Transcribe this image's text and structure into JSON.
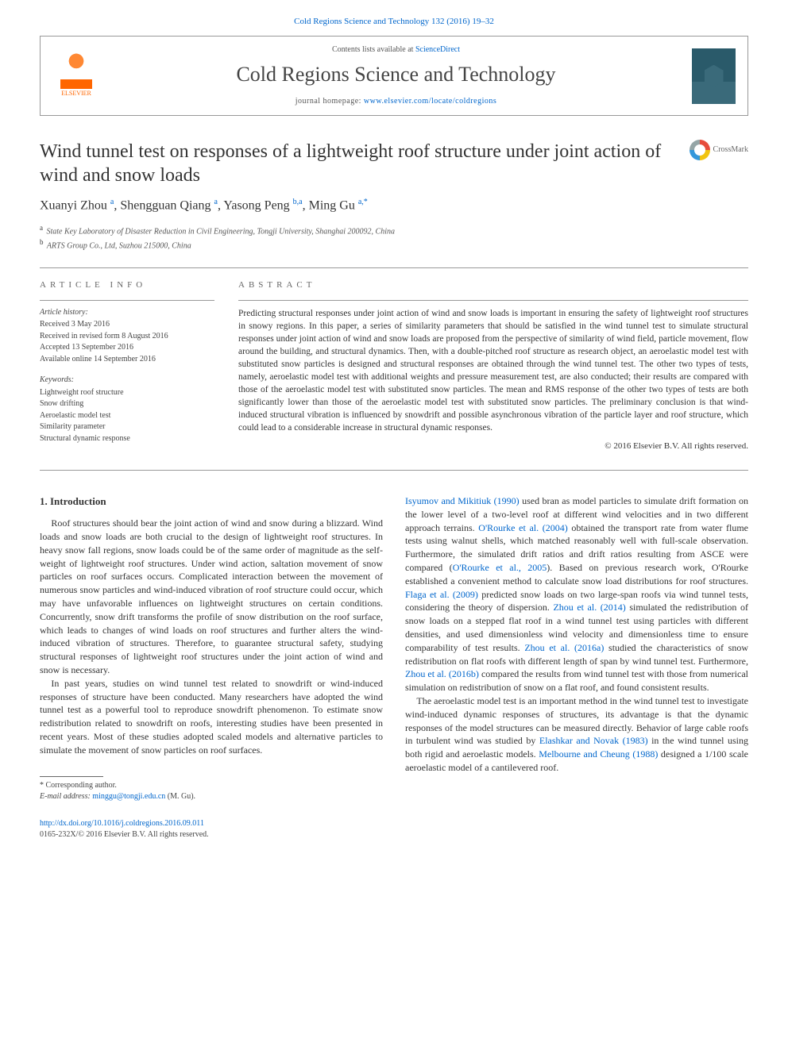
{
  "header": {
    "top_link": "Cold Regions Science and Technology 132 (2016) 19–32",
    "contents_prefix": "Contents lists available at ",
    "contents_link": "ScienceDirect",
    "journal_title": "Cold Regions Science and Technology",
    "homepage_label": "journal homepage: ",
    "homepage_url": "www.elsevier.com/locate/coldregions",
    "elsevier_label": "ELSEVIER"
  },
  "article": {
    "title": "Wind tunnel test on responses of a lightweight roof structure under joint action of wind and snow loads",
    "crossmark": "CrossMark",
    "authors_html": "Xuanyi Zhou <sup>a</sup>, Shengguan Qiang <sup>a</sup>, Yasong Peng <sup>b,a</sup>, Ming Gu <sup>a,*</sup>",
    "affiliations": [
      {
        "sup": "a",
        "text": "State Key Laboratory of Disaster Reduction in Civil Engineering, Tongji University, Shanghai 200092, China"
      },
      {
        "sup": "b",
        "text": "ARTS Group Co., Ltd, Suzhou 215000, China"
      }
    ]
  },
  "info": {
    "heading": "ARTICLE INFO",
    "history_label": "Article history:",
    "history": [
      "Received 3 May 2016",
      "Received in revised form 8 August 2016",
      "Accepted 13 September 2016",
      "Available online 14 September 2016"
    ],
    "keywords_label": "Keywords:",
    "keywords": [
      "Lightweight roof structure",
      "Snow drifting",
      "Aeroelastic model test",
      "Similarity parameter",
      "Structural dynamic response"
    ]
  },
  "abstract": {
    "heading": "ABSTRACT",
    "text": "Predicting structural responses under joint action of wind and snow loads is important in ensuring the safety of lightweight roof structures in snowy regions. In this paper, a series of similarity parameters that should be satisfied in the wind tunnel test to simulate structural responses under joint action of wind and snow loads are proposed from the perspective of similarity of wind field, particle movement, flow around the building, and structural dynamics. Then, with a double-pitched roof structure as research object, an aeroelastic model test with substituted snow particles is designed and structural responses are obtained through the wind tunnel test. The other two types of tests, namely, aeroelastic model test with additional weights and pressure measurement test, are also conducted; their results are compared with those of the aeroelastic model test with substituted snow particles. The mean and RMS response of the other two types of tests are both significantly lower than those of the aeroelastic model test with substituted snow particles. The preliminary conclusion is that wind-induced structural vibration is influenced by snowdrift and possible asynchronous vibration of the particle layer and roof structure, which could lead to a considerable increase in structural dynamic responses.",
    "copyright": "© 2016 Elsevier B.V. All rights reserved."
  },
  "body": {
    "section_head": "1. Introduction",
    "left": [
      "Roof structures should bear the joint action of wind and snow during a blizzard. Wind loads and snow loads are both crucial to the design of lightweight roof structures. In heavy snow fall regions, snow loads could be of the same order of magnitude as the self-weight of lightweight roof structures. Under wind action, saltation movement of snow particles on roof surfaces occurs. Complicated interaction between the movement of numerous snow particles and wind-induced vibration of roof structure could occur, which may have unfavorable influences on lightweight structures on certain conditions. Concurrently, snow drift transforms the profile of snow distribution on the roof surface, which leads to changes of wind loads on roof structures and further alters the wind-induced vibration of structures. Therefore, to guarantee structural safety, studying structural responses of lightweight roof structures under the joint action of wind and snow is necessary.",
      "In past years, studies on wind tunnel test related to snowdrift or wind-induced responses of structure have been conducted. Many researchers have adopted the wind tunnel test as a powerful tool to reproduce snowdrift phenomenon. To estimate snow redistribution related to snowdrift on roofs, interesting studies have been presented in recent years. Most of these studies adopted scaled models and alternative particles to simulate the movement of snow particles on roof surfaces."
    ],
    "right": [
      "<a href=\"#\">Isyumov and Mikitiuk (1990)</a> used bran as model particles to simulate drift formation on the lower level of a two-level roof at different wind velocities and in two different approach terrains. <a href=\"#\">O'Rourke et al. (2004)</a> obtained the transport rate from water flume tests using walnut shells, which matched reasonably well with full-scale observation. Furthermore, the simulated drift ratios and drift ratios resulting from ASCE were compared (<a href=\"#\">O'Rourke et al., 2005</a>). Based on previous research work, O'Rourke established a convenient method to calculate snow load distributions for roof structures. <a href=\"#\">Flaga et al. (2009)</a> predicted snow loads on two large-span roofs via wind tunnel tests, considering the theory of dispersion. <a href=\"#\">Zhou et al. (2014)</a> simulated the redistribution of snow loads on a stepped flat roof in a wind tunnel test using particles with different densities, and used dimensionless wind velocity and dimensionless time to ensure comparability of test results. <a href=\"#\">Zhou et al. (2016a)</a> studied the characteristics of snow redistribution on flat roofs with different length of span by wind tunnel test. Furthermore, <a href=\"#\">Zhou et al. (2016b)</a> compared the results from wind tunnel test with those from numerical simulation on redistribution of snow on a flat roof, and found consistent results.",
      "The aeroelastic model test is an important method in the wind tunnel test to investigate wind-induced dynamic responses of structures, its advantage is that the dynamic responses of the model structures can be measured directly. Behavior of large cable roofs in turbulent wind was studied by <a href=\"#\">Elashkar and Novak (1983)</a> in the wind tunnel using both rigid and aeroelastic models. <a href=\"#\">Melbourne and Cheung (1988)</a> designed a 1/100 scale aeroelastic model of a cantilevered roof."
    ]
  },
  "footer": {
    "corr": "* Corresponding author.",
    "email_label": "E-mail address: ",
    "email": "minggu@tongji.edu.cn",
    "email_suffix": " (M. Gu).",
    "doi": "http://dx.doi.org/10.1016/j.coldregions.2016.09.011",
    "issn": "0165-232X/© 2016 Elsevier B.V. All rights reserved."
  },
  "colors": {
    "link": "#0066cc",
    "text": "#333333",
    "rule": "#999999",
    "elsevier": "#ff6600"
  }
}
